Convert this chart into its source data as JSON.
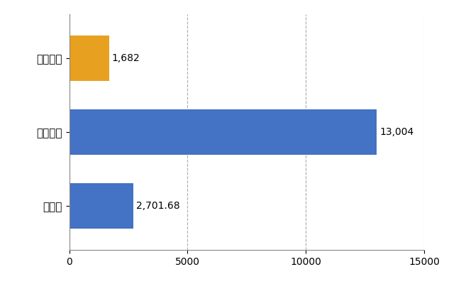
{
  "categories": [
    "愛媛県",
    "全国最大",
    "全国平均"
  ],
  "values": [
    1682,
    13004,
    2701.68
  ],
  "bar_colors": [
    "#E8A020",
    "#4472C4",
    "#4472C4"
  ],
  "labels": [
    "1,682",
    "13,004",
    "2,701.68"
  ],
  "xlim": [
    0,
    15000
  ],
  "xticks": [
    0,
    5000,
    10000,
    15000
  ],
  "background_color": "#FFFFFF",
  "grid_color": "#AAAAAA",
  "bar_height": 0.62,
  "label_fontsize": 10,
  "tick_fontsize": 10,
  "ytick_fontsize": 11
}
